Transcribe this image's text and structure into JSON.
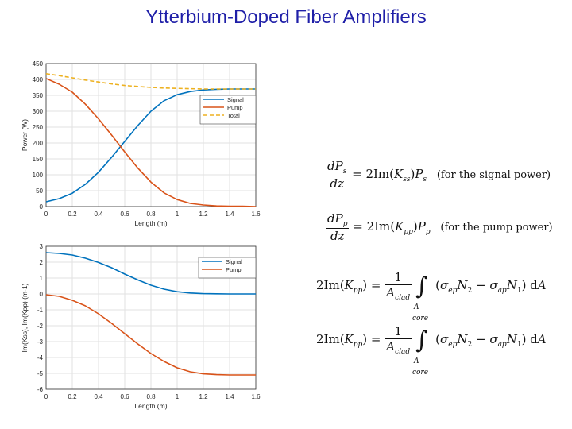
{
  "title": "Ytterbium-Doped Fiber Amplifiers",
  "colors": {
    "signal": "#0072BD",
    "pump": "#D95319",
    "total": "#EDB120",
    "title": "#1f1fa8"
  },
  "chart_data": [
    {
      "type": "line",
      "title": "",
      "xlabel": "Length (m)",
      "ylabel": "Power (W)",
      "xlim": [
        0,
        1.6
      ],
      "ylim": [
        0,
        450
      ],
      "xticks": [
        "0",
        "0.2",
        "0.4",
        "0.6",
        "0.8",
        "1",
        "1.2",
        "1.4",
        "1.6"
      ],
      "yticks": [
        "0",
        "50",
        "100",
        "150",
        "200",
        "250",
        "300",
        "350",
        "400",
        "450"
      ],
      "grid": true,
      "legend_position": "right",
      "x": [
        0,
        0.1,
        0.2,
        0.3,
        0.4,
        0.5,
        0.6,
        0.7,
        0.8,
        0.9,
        1.0,
        1.1,
        1.2,
        1.3,
        1.4,
        1.5,
        1.6
      ],
      "series": [
        {
          "name": "Signal",
          "style": "solid",
          "color": "#0072BD",
          "values": [
            15,
            25,
            42,
            70,
            108,
            155,
            205,
            255,
            300,
            333,
            352,
            362,
            367,
            369,
            370,
            370,
            370
          ]
        },
        {
          "name": "Pump",
          "style": "solid",
          "color": "#D95319",
          "values": [
            403,
            385,
            360,
            322,
            276,
            225,
            172,
            121,
            77,
            43,
            22,
            10,
            5,
            2,
            1,
            1,
            0
          ]
        },
        {
          "name": "Total",
          "style": "dashed",
          "color": "#EDB120",
          "values": [
            418,
            412,
            405,
            398,
            392,
            386,
            381,
            378,
            375,
            373,
            372,
            371,
            370,
            370,
            370,
            370,
            370
          ]
        }
      ]
    },
    {
      "type": "line",
      "title": "",
      "xlabel": "Length (m)",
      "ylabel": "Im(Kss), Im(Kpp) (m-1)",
      "xlim": [
        0,
        1.6
      ],
      "ylim": [
        -6,
        3
      ],
      "xticks": [
        "0",
        "0.2",
        "0.4",
        "0.6",
        "0.8",
        "1",
        "1.2",
        "1.4",
        "1.6"
      ],
      "yticks": [
        "-6",
        "-5",
        "-4",
        "-3",
        "-2",
        "-1",
        "0",
        "1",
        "2",
        "3"
      ],
      "grid": true,
      "legend_position": "top-right",
      "x": [
        0,
        0.1,
        0.2,
        0.3,
        0.4,
        0.5,
        0.6,
        0.7,
        0.8,
        0.9,
        1.0,
        1.1,
        1.2,
        1.3,
        1.4,
        1.5,
        1.6
      ],
      "series": [
        {
          "name": "Signal",
          "style": "solid",
          "color": "#0072BD",
          "values": [
            2.6,
            2.55,
            2.45,
            2.25,
            1.98,
            1.65,
            1.25,
            0.88,
            0.55,
            0.3,
            0.14,
            0.06,
            0.02,
            0.01,
            0.0,
            0.0,
            0.0
          ]
        },
        {
          "name": "Pump",
          "style": "solid",
          "color": "#D95319",
          "values": [
            -0.05,
            -0.15,
            -0.4,
            -0.75,
            -1.25,
            -1.85,
            -2.5,
            -3.15,
            -3.75,
            -4.25,
            -4.65,
            -4.9,
            -5.03,
            -5.08,
            -5.1,
            -5.1,
            -5.1
          ]
        }
      ]
    }
  ],
  "equations": {
    "eq1_note": "(for the signal power)",
    "eq2_note": "(for the pump power)"
  }
}
